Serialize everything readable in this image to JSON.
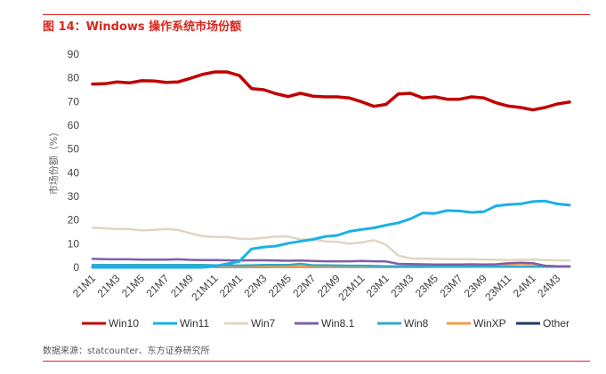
{
  "figure": {
    "title": "图 14：Windows 操作系统市场份额",
    "source": "数据来源：statcounter、东方证券研究所"
  },
  "chart_data": {
    "type": "line",
    "ylabel": "市场份额（%）",
    "ylim": [
      0,
      90
    ],
    "yticks": [
      0,
      10,
      20,
      30,
      40,
      50,
      60,
      70,
      80,
      90
    ],
    "grid": false,
    "legend_position": "bottom",
    "x": [
      "21M1",
      "21M2",
      "21M3",
      "21M4",
      "21M5",
      "21M6",
      "21M7",
      "21M8",
      "21M9",
      "21M10",
      "21M11",
      "21M12",
      "22M1",
      "22M2",
      "22M3",
      "22M4",
      "22M5",
      "22M6",
      "22M7",
      "22M8",
      "22M9",
      "22M10",
      "22M11",
      "22M12",
      "23M1",
      "23M2",
      "23M3",
      "23M4",
      "23M5",
      "23M6",
      "23M7",
      "23M8",
      "23M9",
      "23M10",
      "23M11",
      "23M12",
      "24M1",
      "24M2",
      "24M3",
      "24M4"
    ],
    "xtick_labels": [
      "21M1",
      "21M3",
      "21M5",
      "21M7",
      "21M9",
      "21M11",
      "22M1",
      "22M3",
      "22M5",
      "22M7",
      "22M9",
      "22M11",
      "23M1",
      "23M3",
      "23M5",
      "23M7",
      "23M9",
      "23M11",
      "24M1",
      "24M3"
    ],
    "series": [
      {
        "name": "Win10",
        "color": "#c00000",
        "values": [
          77.4,
          77.5,
          78.3,
          77.9,
          78.8,
          78.7,
          78.1,
          78.3,
          79.8,
          81.5,
          82.5,
          82.5,
          81.0,
          75.5,
          75.0,
          73.3,
          72.1,
          73.5,
          72.3,
          72.0,
          72.0,
          71.5,
          69.9,
          68.0,
          68.8,
          73.2,
          73.5,
          71.5,
          72.0,
          71.0,
          71.0,
          72.0,
          71.5,
          69.5,
          68.1,
          67.5,
          66.5,
          67.5,
          69.0,
          69.8
        ]
      },
      {
        "name": "Win11",
        "color": "#1ab0e8",
        "values": [
          0,
          0,
          0,
          0,
          0,
          0,
          0,
          0,
          0,
          0,
          0.5,
          1.5,
          2.5,
          7.8,
          8.6,
          9.0,
          10.2,
          11.0,
          11.8,
          13.0,
          13.5,
          15.2,
          16.0,
          16.7,
          17.8,
          18.8,
          20.5,
          23.0,
          22.8,
          24.0,
          23.8,
          23.2,
          23.5,
          26.0,
          26.5,
          26.8,
          27.8,
          28.0,
          26.8,
          26.3
        ]
      },
      {
        "name": "Win7",
        "color": "#e0d6c2",
        "values": [
          16.8,
          16.5,
          16.2,
          16.2,
          15.6,
          15.8,
          16.2,
          15.8,
          14.4,
          13.2,
          12.8,
          12.8,
          12.1,
          12.0,
          12.5,
          13.0,
          13.0,
          11.8,
          11.8,
          11.0,
          10.8,
          10.0,
          10.5,
          11.5,
          9.6,
          5.0,
          3.8,
          3.7,
          3.6,
          3.5,
          3.4,
          3.5,
          3.3,
          3.2,
          3.1,
          3.2,
          3.3,
          3.1,
          3.0,
          2.9
        ]
      },
      {
        "name": "Win8.1",
        "color": "#7f5fa8",
        "values": [
          3.6,
          3.5,
          3.4,
          3.4,
          3.3,
          3.3,
          3.3,
          3.4,
          3.2,
          3.1,
          3.1,
          3.0,
          2.9,
          3.0,
          3.0,
          2.9,
          2.8,
          2.9,
          2.7,
          2.6,
          2.6,
          2.6,
          2.7,
          2.6,
          2.5,
          1.5,
          1.4,
          1.3,
          1.2,
          1.2,
          1.2,
          1.3,
          1.2,
          1.3,
          1.8,
          2.0,
          1.8,
          0.7,
          0.5,
          0.5
        ]
      },
      {
        "name": "Win8",
        "color": "#35a9c6",
        "values": [
          1.0,
          1.0,
          1.0,
          1.0,
          1.0,
          1.0,
          1.0,
          1.0,
          1.0,
          1.0,
          0.9,
          0.9,
          0.8,
          0.9,
          1.0,
          1.0,
          1.0,
          1.5,
          0.9,
          0.9,
          0.8,
          0.7,
          0.7,
          0.6,
          0.5,
          0.4,
          0.4,
          0.4,
          0.3,
          0.3,
          0.3,
          0.3,
          0.3,
          0.3,
          0.3,
          0.3,
          0.3,
          0.3,
          0.3,
          0.3
        ]
      },
      {
        "name": "WinXP",
        "color": "#f29d4b",
        "values": [
          0.6,
          0.6,
          0.6,
          0.6,
          0.6,
          0.6,
          0.6,
          0.6,
          0.5,
          0.5,
          0.5,
          0.5,
          0.5,
          0.5,
          0.5,
          0.4,
          0.4,
          0.4,
          0.4,
          0.4,
          0.4,
          0.4,
          0.4,
          0.4,
          0.4,
          0.4,
          0.4,
          0.4,
          0.4,
          0.4,
          0.4,
          0.5,
          0.6,
          0.8,
          1.2,
          1.4,
          1.3,
          0.7,
          0.5,
          0.4
        ]
      },
      {
        "name": "Other",
        "color": "#1f3a60",
        "values": [
          0.3,
          0.3,
          0.3,
          0.3,
          0.3,
          0.3,
          0.3,
          0.3,
          0.3,
          0.3,
          0.3,
          0.3,
          0.3,
          0.3,
          0.3,
          0.3,
          0.3,
          0.3,
          0.3,
          0.3,
          0.3,
          0.3,
          0.3,
          0.3,
          0.3,
          0.3,
          0.3,
          0.3,
          0.3,
          0.3,
          0.3,
          0.3,
          0.3,
          0.3,
          0.3,
          0.3,
          0.3,
          0.3,
          0.3,
          0.3
        ]
      }
    ]
  }
}
